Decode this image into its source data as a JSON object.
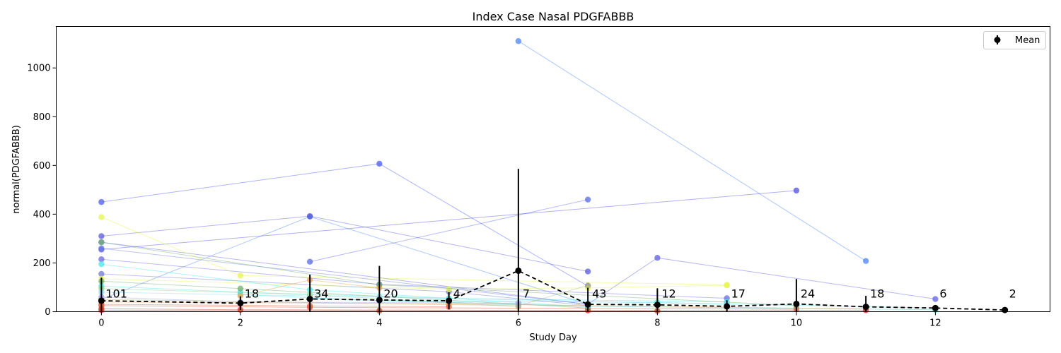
{
  "chart_data": {
    "type": "line",
    "title": "Index Case Nasal PDGFABBB",
    "xlabel": "Study Day",
    "ylabel": "normal(PDGFABBB)",
    "xlim": [
      -0.65,
      13.65
    ],
    "ylim": [
      0,
      1170
    ],
    "x_ticks": [
      0,
      2,
      4,
      6,
      8,
      10,
      12
    ],
    "y_ticks": [
      0,
      200,
      400,
      600,
      800,
      1000
    ],
    "grid": false,
    "legend": {
      "placement": "top-right",
      "entries": [
        "Mean"
      ]
    },
    "mean_series": {
      "name": "Mean",
      "color": "#000000",
      "x": [
        0,
        2,
        3,
        4,
        5,
        6,
        7,
        8,
        9,
        10,
        11,
        12,
        13
      ],
      "y": [
        45,
        35,
        52,
        48,
        45,
        168,
        30,
        28,
        22,
        32,
        20,
        15,
        7
      ],
      "err": [
        95,
        28,
        100,
        140,
        35,
        418,
        68,
        68,
        25,
        102,
        45,
        8,
        3
      ],
      "counts": [
        "101",
        "18",
        "34",
        "20",
        "4",
        "7",
        "43",
        "12",
        "17",
        "24",
        "18",
        "6",
        "2"
      ]
    },
    "series": [
      {
        "color": "#4a5cf0",
        "x": [
          0,
          4,
          7
        ],
        "y": [
          450,
          607,
          105
        ]
      },
      {
        "color": "#4a84f5",
        "x": [
          6,
          11
        ],
        "y": [
          1110,
          208
        ]
      },
      {
        "color": "#4a84f5",
        "x": [
          0,
          3,
          7
        ],
        "y": [
          50,
          390,
          30
        ]
      },
      {
        "color": "#5050e0",
        "x": [
          0,
          10
        ],
        "y": [
          255,
          497
        ]
      },
      {
        "color": "#5a6ae8",
        "x": [
          3,
          7
        ],
        "y": [
          205,
          460
        ]
      },
      {
        "color": "#6060e0",
        "x": [
          0,
          7,
          8,
          12
        ],
        "y": [
          285,
          30,
          221,
          52
        ]
      },
      {
        "color": "#5a5ad8",
        "x": [
          0,
          3,
          7
        ],
        "y": [
          310,
          392,
          165
        ]
      },
      {
        "color": "#6a7ae0",
        "x": [
          0,
          7
        ],
        "y": [
          260,
          30
        ]
      },
      {
        "color": "#6a6ae0",
        "x": [
          0,
          4,
          9
        ],
        "y": [
          215,
          112,
          55
        ]
      },
      {
        "color": "#7078d8",
        "x": [
          0,
          5,
          7
        ],
        "y": [
          155,
          82,
          25
        ]
      },
      {
        "color": "#e6f550",
        "x": [
          0,
          2,
          9
        ],
        "y": [
          388,
          148,
          110
        ]
      },
      {
        "color": "#e6f550",
        "x": [
          0,
          5,
          7,
          9
        ],
        "y": [
          135,
          92,
          98,
          108
        ]
      },
      {
        "color": "#4ae6e6",
        "x": [
          0,
          3,
          7
        ],
        "y": [
          195,
          90,
          20
        ]
      },
      {
        "color": "#4ae6e6",
        "x": [
          0,
          2,
          5,
          9
        ],
        "y": [
          105,
          80,
          55,
          40
        ]
      },
      {
        "color": "#4ae6e6",
        "x": [
          2,
          4,
          8,
          12
        ],
        "y": [
          70,
          45,
          38,
          15
        ]
      },
      {
        "color": "#70b070",
        "x": [
          0,
          4,
          10
        ],
        "y": [
          285,
          110,
          25
        ]
      },
      {
        "color": "#70b070",
        "x": [
          0,
          2,
          7
        ],
        "y": [
          125,
          95,
          15
        ]
      },
      {
        "color": "#90d890",
        "x": [
          0,
          3,
          6
        ],
        "y": [
          95,
          70,
          20
        ]
      },
      {
        "color": "#f0a050",
        "x": [
          2,
          3,
          4
        ],
        "y": [
          65,
          130,
          98
        ]
      },
      {
        "color": "#f0a050",
        "x": [
          0,
          5,
          11
        ],
        "y": [
          40,
          32,
          12
        ]
      },
      {
        "color": "#b0b080",
        "x": [
          0,
          6,
          7
        ],
        "y": [
          50,
          25,
          108
        ]
      },
      {
        "color": "#e05030",
        "x": [
          0,
          3,
          10
        ],
        "y": [
          25,
          18,
          10
        ]
      },
      {
        "color": "#d03020",
        "x": [
          0,
          2,
          7,
          11
        ],
        "y": [
          12,
          8,
          5,
          6
        ]
      },
      {
        "color": "#c04020",
        "x": [
          0,
          4,
          8
        ],
        "y": [
          6,
          4,
          3
        ]
      },
      {
        "color": "#e06040",
        "x": [
          0,
          3,
          5
        ],
        "y": [
          30,
          24,
          20
        ]
      },
      {
        "color": "#8fd8f0",
        "x": [
          0,
          4,
          9
        ],
        "y": [
          80,
          60,
          30
        ]
      },
      {
        "color": "#a0a0e0",
        "x": [
          0,
          2,
          6
        ],
        "y": [
          60,
          40,
          35
        ]
      },
      {
        "color": "#50c0c0",
        "x": [
          3,
          7,
          12
        ],
        "y": [
          55,
          22,
          8
        ]
      }
    ]
  }
}
